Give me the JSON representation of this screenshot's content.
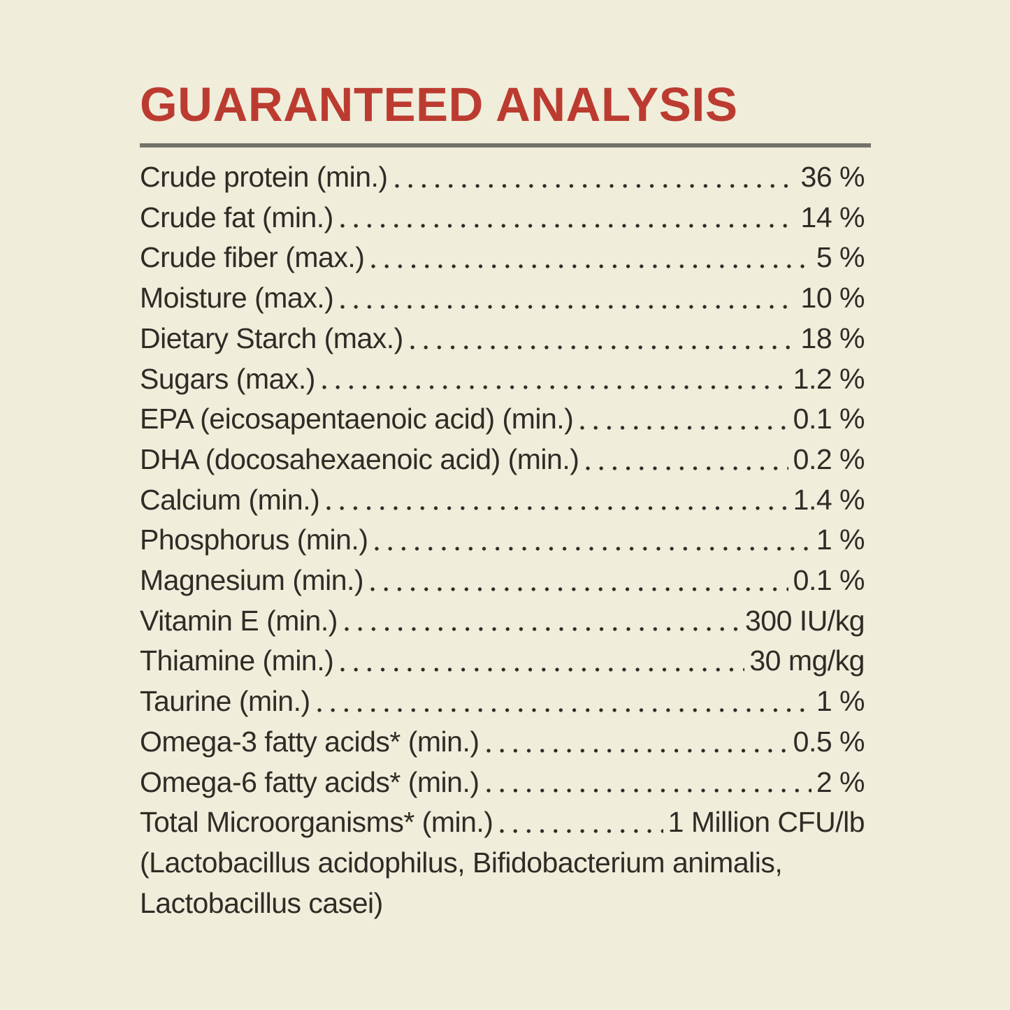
{
  "title": "GUARANTEED ANALYSIS",
  "colors": {
    "background": "#F0EDDB",
    "title_red": "#BC3B30",
    "body_text": "#2E2C25",
    "divider_gray": "#73736A"
  },
  "rows": [
    {
      "label": "Crude protein (min.)",
      "value": "36 %"
    },
    {
      "label": "Crude fat (min.)",
      "value": "14 %"
    },
    {
      "label": "Crude fiber (max.)",
      "value": "5 %"
    },
    {
      "label": "Moisture (max.)",
      "value": "10 %"
    },
    {
      "label": "Dietary Starch (max.)",
      "value": "18 %"
    },
    {
      "label": "Sugars (max.)",
      "value": "1.2 %"
    },
    {
      "label": "EPA (eicosapentaenoic acid) (min.)",
      "value": "0.1 %"
    },
    {
      "label": "DHA (docosahexaenoic acid) (min.)",
      "value": "0.2 %"
    },
    {
      "label": "Calcium (min.)",
      "value": "1.4 %"
    },
    {
      "label": "Phosphorus (min.)",
      "value": "1 %"
    },
    {
      "label": "Magnesium (min.)",
      "value": "0.1 %"
    },
    {
      "label": "Vitamin E (min.)",
      "value": "300 IU/kg"
    },
    {
      "label": "Thiamine (min.)",
      "value": "30 mg/kg"
    },
    {
      "label": "Taurine (min.)",
      "value": "1 %"
    },
    {
      "label": "Omega-3 fatty acids* (min.)",
      "value": "0.5 %"
    },
    {
      "label": "Omega-6 fatty acids* (min.)",
      "value": "2 %"
    },
    {
      "label": "Total Microorganisms* (min.)",
      "value": "1 Million CFU/lb"
    }
  ],
  "footnote_lines": [
    "(Lactobacillus acidophilus, Bifidobacterium animalis,",
    "Lactobacillus casei)"
  ]
}
